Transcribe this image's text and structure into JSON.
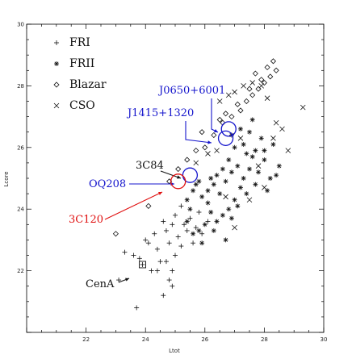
{
  "chart_data": {
    "type": "scatter",
    "title": "",
    "xlabel": "Ltot",
    "ylabel": "Lcore",
    "xlim": [
      20,
      30
    ],
    "ylim": [
      20,
      30
    ],
    "xticks": [
      "22",
      "24",
      "26",
      "28",
      "30"
    ],
    "yticks": [
      "22",
      "24",
      "26",
      "28",
      "30"
    ],
    "legend_position": "top-left",
    "grid": false,
    "series": [
      {
        "name": "FRI",
        "marker": "+",
        "points": [
          [
            23.7,
            20.8
          ],
          [
            23.1,
            21.7
          ],
          [
            23.3,
            22.6
          ],
          [
            23.6,
            22.5
          ],
          [
            23.9,
            22.2
          ],
          [
            24.2,
            22.0
          ],
          [
            24.1,
            22.9
          ],
          [
            24.4,
            22.7
          ],
          [
            24.7,
            22.3
          ],
          [
            24.8,
            21.7
          ],
          [
            24.9,
            21.5
          ],
          [
            24.6,
            21.2
          ],
          [
            24.8,
            22.9
          ],
          [
            25.0,
            22.5
          ],
          [
            24.3,
            23.2
          ],
          [
            24.7,
            23.3
          ],
          [
            24.9,
            23.5
          ],
          [
            25.1,
            23.1
          ],
          [
            25.2,
            22.8
          ],
          [
            25.3,
            23.5
          ],
          [
            25.4,
            23.3
          ],
          [
            25.5,
            23.7
          ],
          [
            25.7,
            23.4
          ],
          [
            25.8,
            23.9
          ],
          [
            24.5,
            22.3
          ],
          [
            24.0,
            23.0
          ],
          [
            25.0,
            23.8
          ],
          [
            25.2,
            24.1
          ],
          [
            25.6,
            22.9
          ],
          [
            24.6,
            23.6
          ],
          [
            24.9,
            22.0
          ],
          [
            25.9,
            23.2
          ],
          [
            26.1,
            23.6
          ],
          [
            23.8,
            22.4
          ],
          [
            24.4,
            22.0
          ]
        ]
      },
      {
        "name": "FRII",
        "marker": "*",
        "points": [
          [
            25.4,
            24.3
          ],
          [
            25.6,
            24.6
          ],
          [
            25.8,
            24.9
          ],
          [
            25.9,
            24.4
          ],
          [
            26.1,
            24.2
          ],
          [
            26.3,
            24.8
          ],
          [
            26.5,
            24.5
          ],
          [
            26.7,
            24.9
          ],
          [
            26.9,
            25.2
          ],
          [
            27.1,
            25.4
          ],
          [
            27.3,
            25.0
          ],
          [
            27.5,
            25.3
          ],
          [
            27.6,
            25.7
          ],
          [
            27.8,
            25.2
          ],
          [
            28.0,
            25.6
          ],
          [
            28.2,
            25.0
          ],
          [
            27.2,
            24.7
          ],
          [
            27.0,
            24.3
          ],
          [
            26.8,
            24.0
          ],
          [
            26.6,
            23.8
          ],
          [
            26.4,
            23.6
          ],
          [
            26.2,
            23.9
          ],
          [
            26.0,
            23.5
          ],
          [
            25.8,
            23.3
          ],
          [
            26.9,
            23.7
          ],
          [
            27.1,
            24.1
          ],
          [
            27.4,
            24.5
          ],
          [
            27.7,
            24.8
          ],
          [
            28.1,
            24.6
          ],
          [
            28.4,
            25.1
          ],
          [
            27.3,
            26.1
          ],
          [
            27.5,
            26.5
          ],
          [
            27.7,
            25.9
          ],
          [
            27.9,
            26.3
          ],
          [
            28.0,
            25.9
          ],
          [
            26.6,
            25.3
          ],
          [
            26.4,
            25.1
          ],
          [
            26.2,
            25.0
          ],
          [
            25.5,
            24.0
          ],
          [
            25.7,
            24.8
          ],
          [
            26.1,
            24.6
          ],
          [
            26.8,
            25.6
          ],
          [
            27.4,
            25.8
          ],
          [
            28.3,
            26.1
          ],
          [
            25.4,
            23.6
          ],
          [
            25.6,
            23.2
          ],
          [
            26.3,
            23.3
          ],
          [
            26.7,
            23.0
          ],
          [
            25.9,
            22.9
          ],
          [
            27.0,
            26.0
          ],
          [
            26.9,
            26.4
          ],
          [
            27.2,
            26.6
          ],
          [
            27.6,
            26.9
          ],
          [
            28.5,
            25.4
          ]
        ]
      },
      {
        "name": "Blazar",
        "marker": "diamond",
        "points": [
          [
            23.0,
            23.2
          ],
          [
            24.1,
            24.1
          ],
          [
            24.8,
            24.9
          ],
          [
            25.1,
            25.3
          ],
          [
            25.4,
            25.6
          ],
          [
            25.7,
            25.9
          ],
          [
            26.0,
            26.0
          ],
          [
            26.3,
            26.4
          ],
          [
            26.6,
            26.8
          ],
          [
            26.9,
            27.0
          ],
          [
            27.2,
            27.2
          ],
          [
            27.4,
            27.5
          ],
          [
            27.6,
            27.7
          ],
          [
            27.8,
            27.9
          ],
          [
            28.0,
            28.1
          ],
          [
            28.2,
            28.3
          ],
          [
            28.4,
            28.5
          ],
          [
            27.9,
            28.2
          ],
          [
            27.5,
            27.9
          ],
          [
            27.1,
            27.4
          ],
          [
            26.7,
            27.1
          ],
          [
            28.1,
            28.6
          ],
          [
            28.3,
            28.8
          ],
          [
            27.7,
            28.4
          ],
          [
            26.5,
            26.9
          ],
          [
            25.9,
            26.5
          ]
        ]
      },
      {
        "name": "CSO",
        "marker": "x",
        "points": [
          [
            26.5,
            27.5
          ],
          [
            26.8,
            27.7
          ],
          [
            27.0,
            27.8
          ],
          [
            27.3,
            28.0
          ],
          [
            27.6,
            28.1
          ],
          [
            27.9,
            28.0
          ],
          [
            28.1,
            27.6
          ],
          [
            28.4,
            26.8
          ],
          [
            28.6,
            26.6
          ],
          [
            28.3,
            26.3
          ],
          [
            28.8,
            25.9
          ],
          [
            29.3,
            27.3
          ],
          [
            26.1,
            25.8
          ],
          [
            25.7,
            25.5
          ],
          [
            27.2,
            26.3
          ],
          [
            27.8,
            25.4
          ],
          [
            28.0,
            24.7
          ],
          [
            26.4,
            25.9
          ],
          [
            27.5,
            24.3
          ],
          [
            26.7,
            24.4
          ],
          [
            27.0,
            23.4
          ]
        ]
      }
    ],
    "annotations": [
      {
        "label": "J0650+6001",
        "x": 26.8,
        "y": 26.6,
        "color": "#1515cc"
      },
      {
        "label": "J1415+1320",
        "x": 26.7,
        "y": 26.3,
        "color": "#1515cc"
      },
      {
        "label": "3C84",
        "x": 25.5,
        "y": 25.1,
        "color": "#111111"
      },
      {
        "label": "OQ208",
        "x": 25.5,
        "y": 25.1,
        "color": "#1515cc"
      },
      {
        "label": "3C120",
        "x": 25.1,
        "y": 24.9,
        "color": "#e01010"
      },
      {
        "label": "CenA",
        "x": 23.9,
        "y": 22.2,
        "color": "#111111"
      }
    ]
  }
}
